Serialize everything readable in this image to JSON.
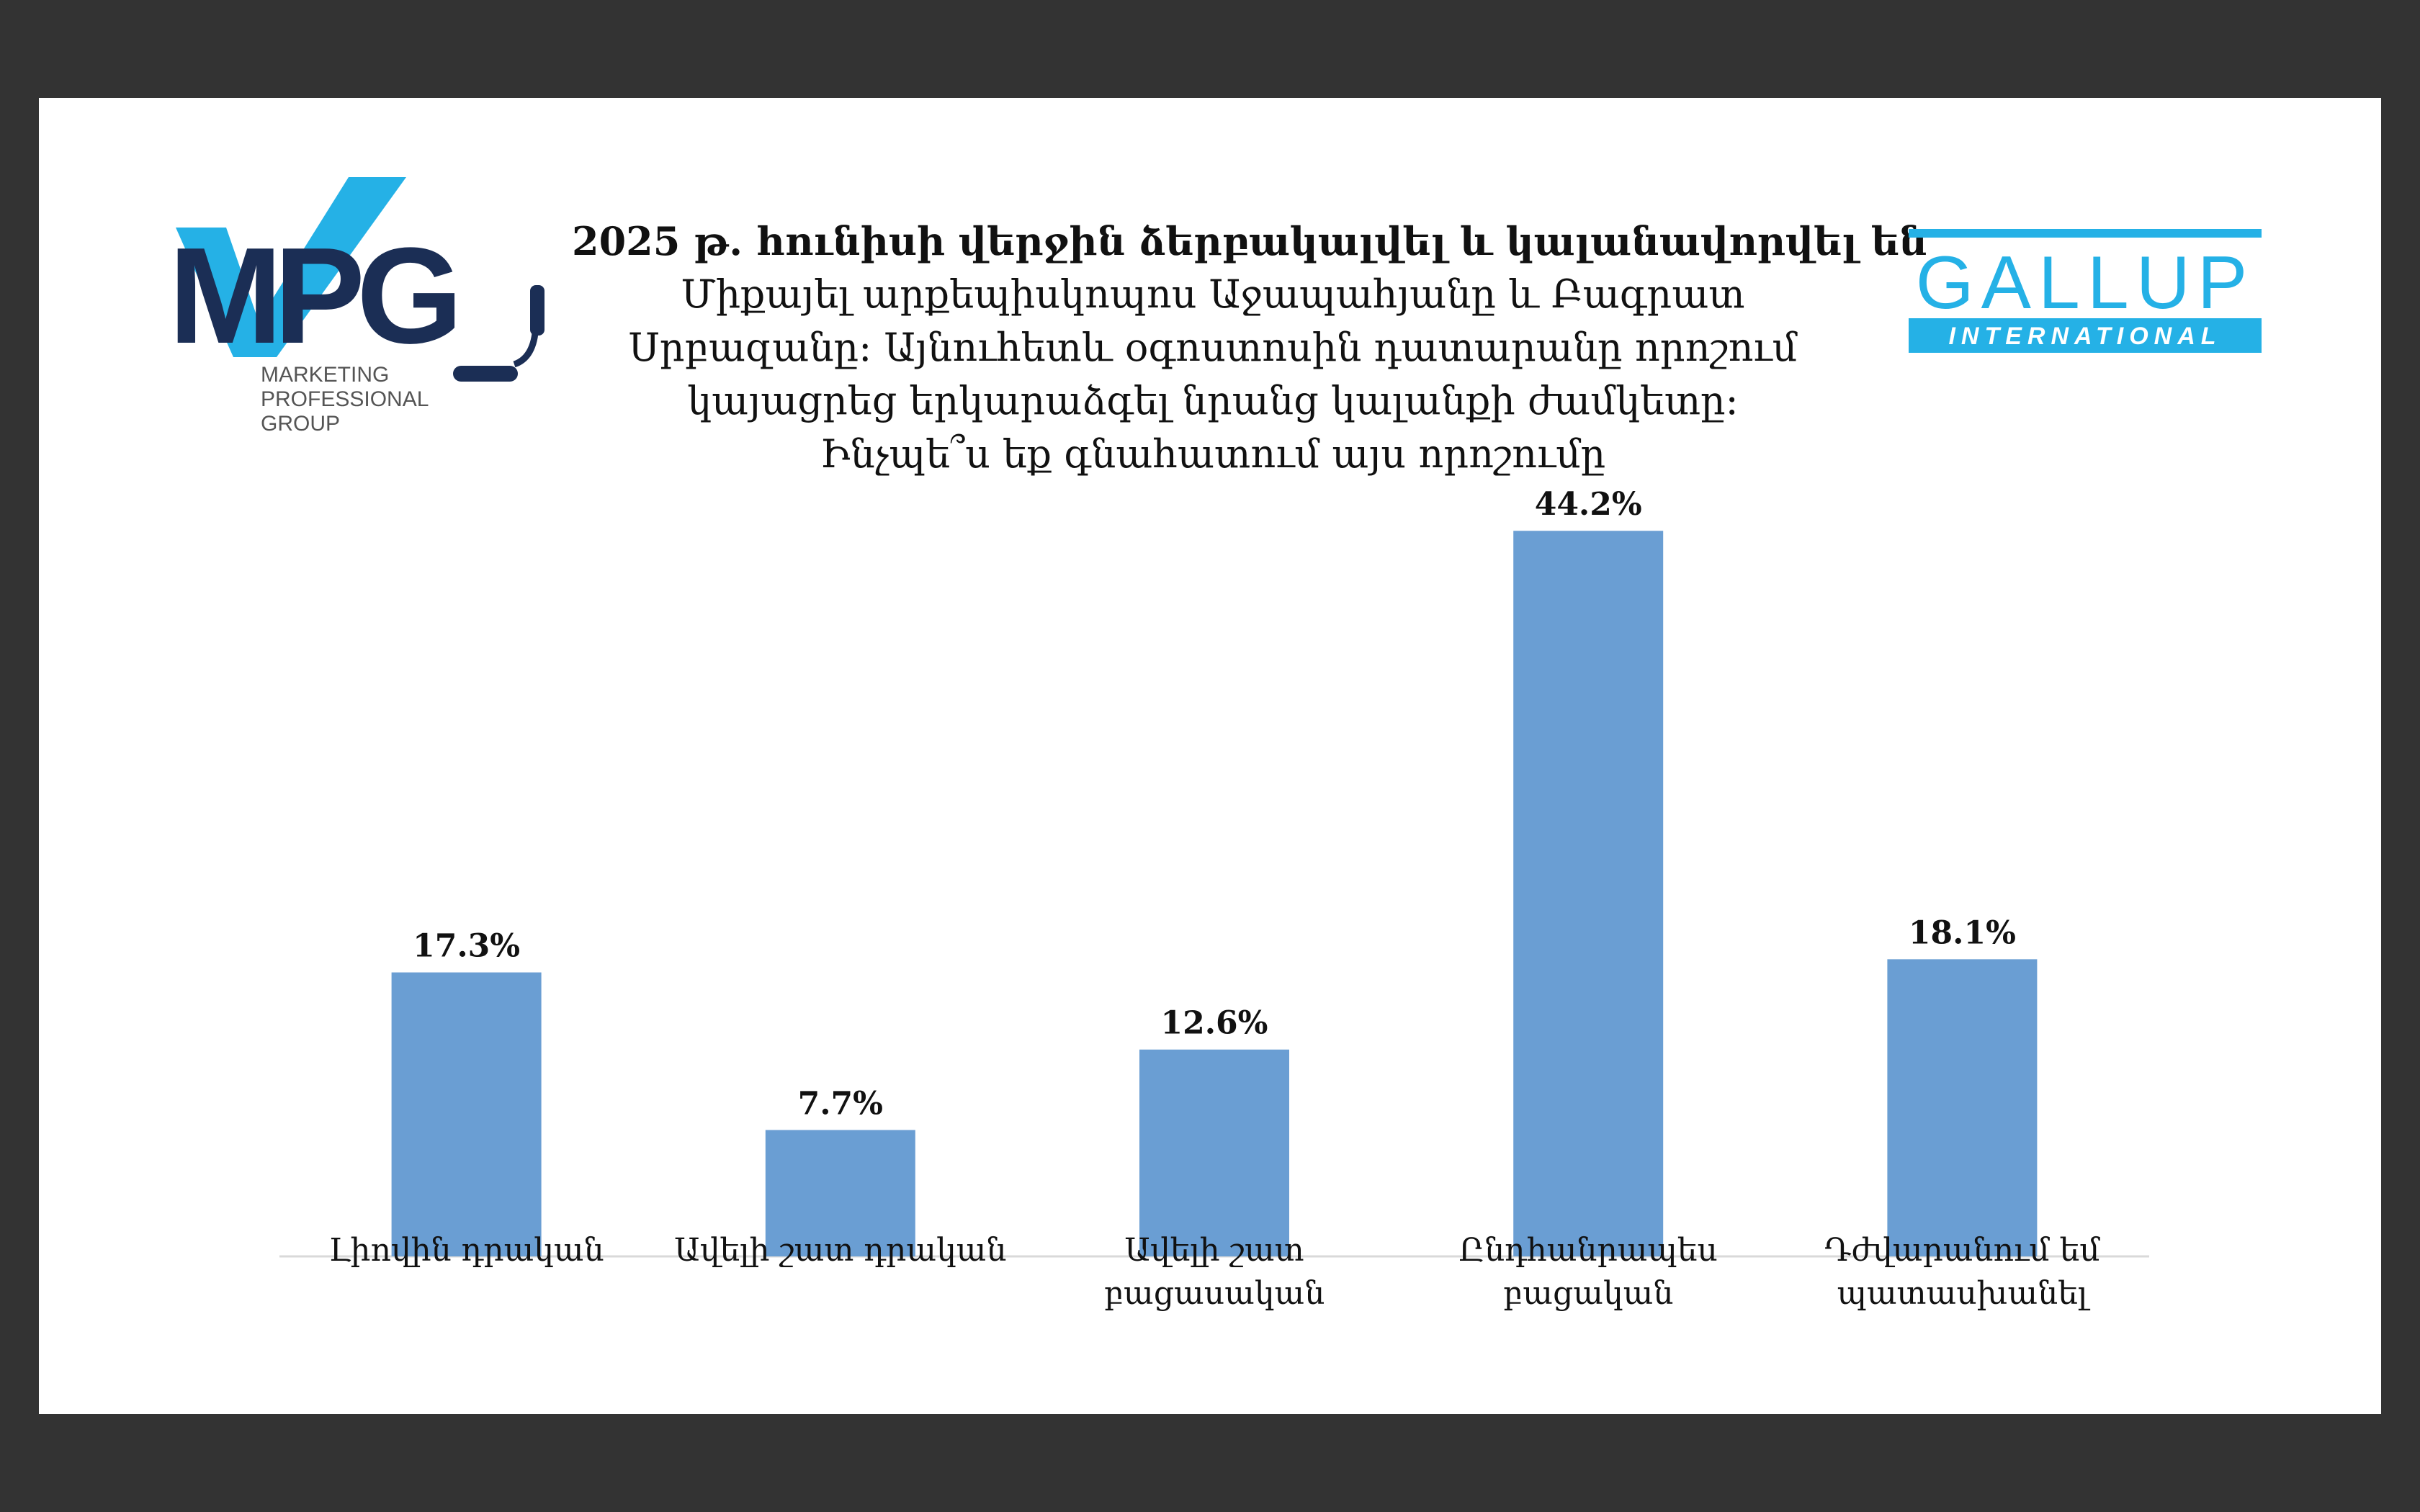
{
  "title_lines": [
    "2025 թ․ հունիսի վերջին ձերբակալվել և կալանավորվել են",
    "Միքայել արքեպիսկոպոս Աջապահյանը և Բագրատ",
    "Սրբազանը: Այնուհետև օգոստոսին դատարանը որոշում",
    "կայացրեց երկարաձգել նրանց կալանքի ժամկետը:",
    "Ինչպե՞ս եք գնահատում այս որոշումը"
  ],
  "logos": {
    "mpg": {
      "mark": "MPG",
      "lines": [
        "MARKETING",
        "PROFESSIONAL",
        "GROUP"
      ]
    },
    "gallup": {
      "name": "GALLUP",
      "sub": "INTERNATIONAL"
    }
  },
  "colors": {
    "bar": "#6A9ED3",
    "mpg_dark": "#1B2E55",
    "mpg_light": "#25B1E6",
    "gallup": "#25B1E6"
  },
  "chart_data": {
    "type": "bar",
    "title": "2025 թ․ հունիսի վերջին ձերբակալվել և կալանավորվել են Միքայել արքեպիսկոպոս Աջապահյանը և Բագրատ Սրբազանը: Այնուհետև օգոստոսին դատարանը որոշում կայացրեց երկարաձգել նրանց կալանքի ժամկետը: Ինչպե՞ս եք գնահատում այս որոշումը",
    "categories": [
      [
        "Լիովին դրական"
      ],
      [
        "Ավելի շատ դրական"
      ],
      [
        "Ավելի շատ",
        "բացասական"
      ],
      [
        "Ընդհանրապես",
        "բացական"
      ],
      [
        "Դժվարանում եմ",
        "պատասխանել"
      ]
    ],
    "values": [
      17.3,
      7.7,
      12.6,
      44.2,
      18.1
    ],
    "value_labels": [
      "17.3%",
      "7.7%",
      "12.6%",
      "44.2%",
      "18.1%"
    ],
    "unit": "%",
    "ylim": [
      0,
      50
    ],
    "grid": false,
    "legend": "none"
  }
}
